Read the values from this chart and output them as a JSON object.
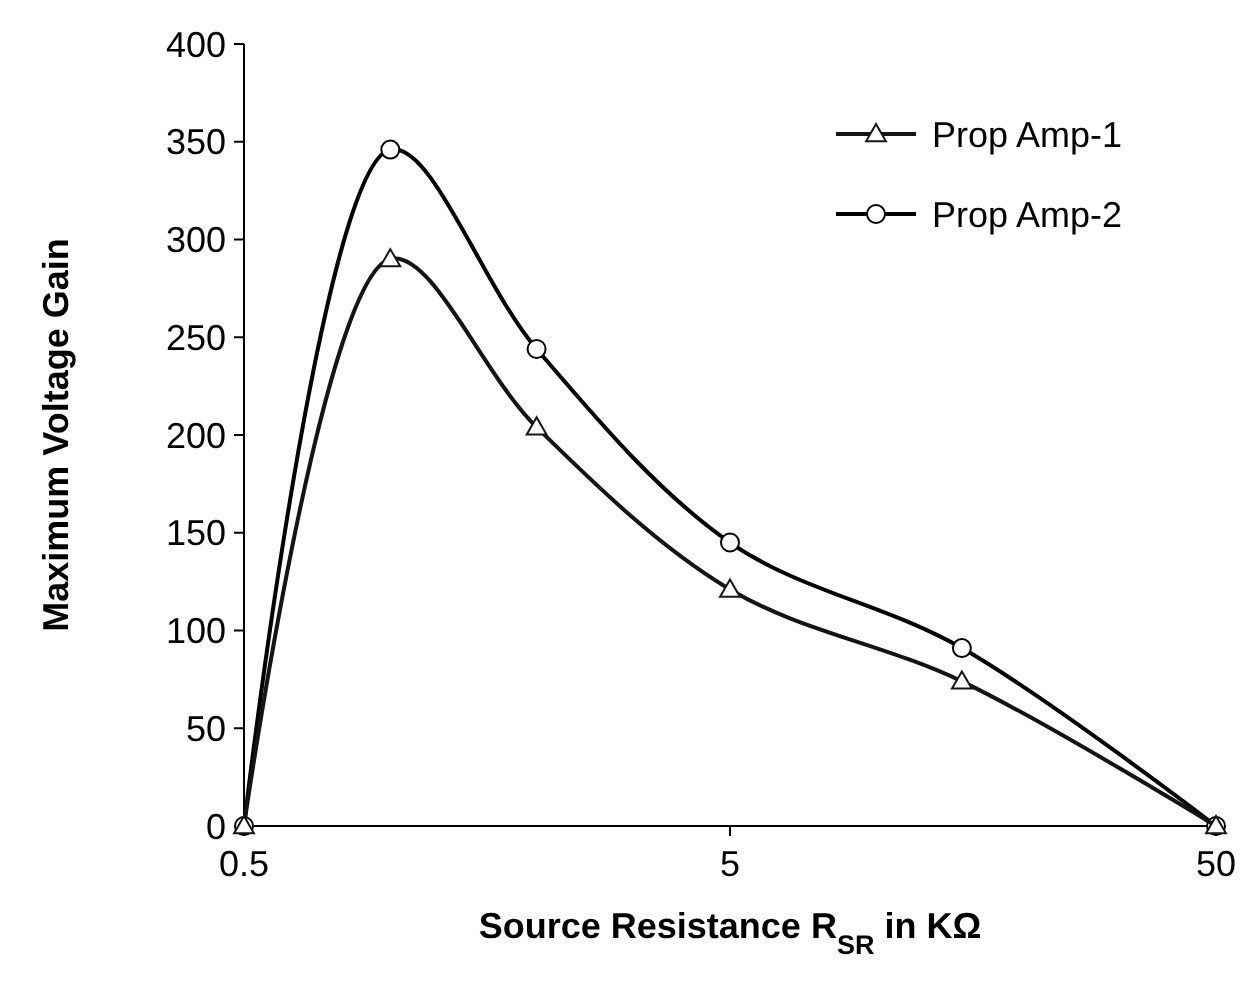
{
  "chart_data": {
    "type": "line",
    "xlabel": "Source Resistance R$_{SR}$ in KΩ",
    "ylabel": "Maximum Voltage Gain",
    "log": "x",
    "xlim": [
      0.5,
      50
    ],
    "xticks": [
      0.5,
      5,
      50
    ],
    "ylim": [
      0,
      400
    ],
    "yticks": [
      0,
      50,
      100,
      150,
      200,
      250,
      300,
      350,
      400
    ],
    "grid": false,
    "legend": "top right",
    "line_style": "solid",
    "series": [
      {
        "name": "Prop Amp-1",
        "color": "#141414",
        "marker": "triangle",
        "x": [
          0.5,
          1,
          2,
          5,
          15,
          50
        ],
        "values": [
          0,
          290,
          204,
          121,
          74,
          0
        ]
      },
      {
        "name": "Prop Amp-2",
        "color": "#000000",
        "marker": "circle",
        "x": [
          0.5,
          1,
          2,
          5,
          15,
          50
        ],
        "values": [
          0,
          346,
          244,
          145,
          91,
          0
        ]
      }
    ]
  }
}
